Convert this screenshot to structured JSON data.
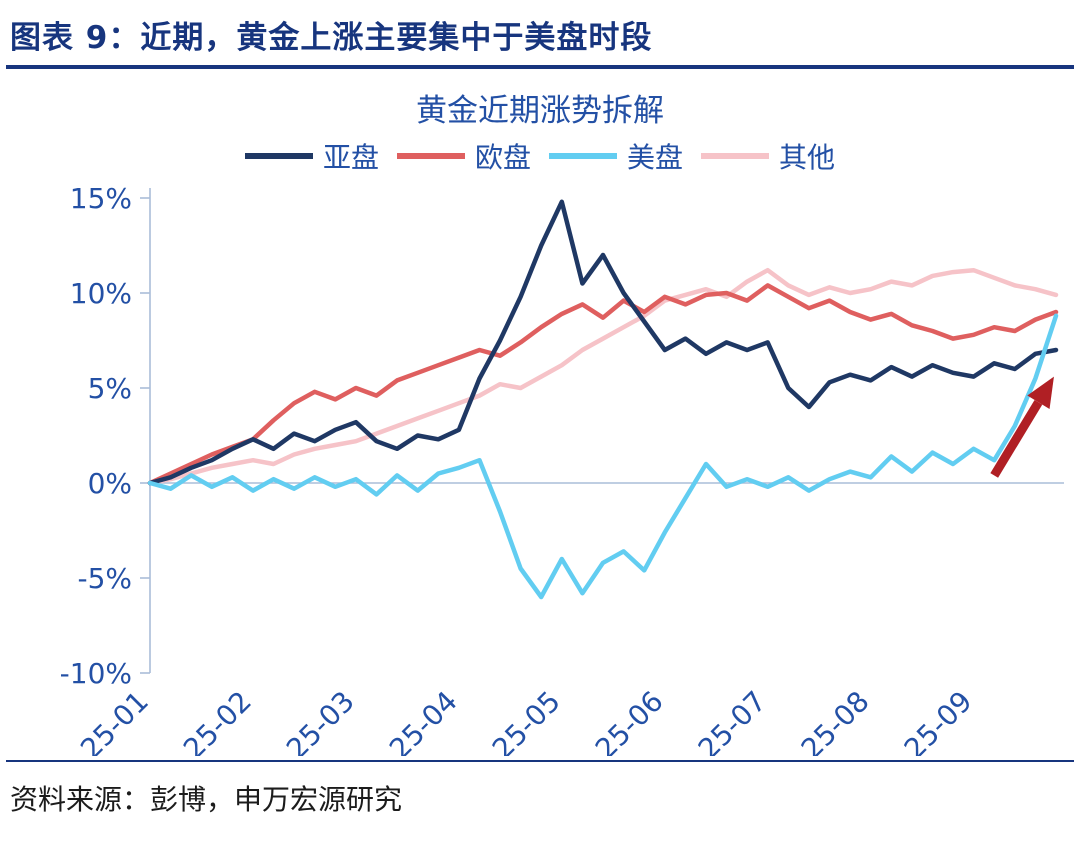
{
  "figure": {
    "title": "图表 9：近期，黄金上涨主要集中于美盘时段",
    "source": "资料来源：彭博，申万宏源研究"
  },
  "chart_data": {
    "type": "line",
    "title": "黄金近期涨势拆解",
    "xlabel": "",
    "ylabel": "",
    "y_unit": "%",
    "ylim": [
      -10,
      15
    ],
    "y_ticks": [
      15,
      10,
      5,
      0,
      -5,
      -10
    ],
    "y_tick_labels": [
      "15%",
      "10%",
      "5%",
      "0%",
      "-5%",
      "-10%"
    ],
    "x_tick_labels": [
      "25-01",
      "25-02",
      "25-03",
      "25-04",
      "25-05",
      "25-06",
      "25-07",
      "25-08",
      "25-09"
    ],
    "x_months_span": [
      0,
      8.8
    ],
    "points_per_month": 5,
    "grid": false,
    "legend_position": "top",
    "axis_color": "#aabdd8",
    "text_color": "#2350a5",
    "series": [
      {
        "key": "asia",
        "name": "亚盘",
        "color": "#1f3864",
        "values": [
          0,
          0.3,
          0.8,
          1.2,
          1.8,
          2.3,
          1.8,
          2.6,
          2.2,
          2.8,
          3.2,
          2.2,
          1.8,
          2.5,
          2.3,
          2.8,
          5.5,
          7.5,
          9.8,
          12.5,
          14.8,
          10.5,
          12.0,
          10.0,
          8.5,
          7.0,
          7.6,
          6.8,
          7.4,
          7.0,
          7.4,
          5.0,
          4.0,
          5.3,
          5.7,
          5.4,
          6.1,
          5.6,
          6.2,
          5.8,
          5.6,
          6.3,
          6.0,
          6.8,
          7.0
        ]
      },
      {
        "key": "europe",
        "name": "欧盘",
        "color": "#df5f5f",
        "values": [
          0,
          0.5,
          1.0,
          1.5,
          1.9,
          2.3,
          3.3,
          4.2,
          4.8,
          4.4,
          5.0,
          4.6,
          5.4,
          5.8,
          6.2,
          6.6,
          7.0,
          6.7,
          7.4,
          8.2,
          8.9,
          9.4,
          8.7,
          9.6,
          9.0,
          9.8,
          9.4,
          9.9,
          10.0,
          9.6,
          10.4,
          9.8,
          9.2,
          9.6,
          9.0,
          8.6,
          8.9,
          8.3,
          8.0,
          7.6,
          7.8,
          8.2,
          8.0,
          8.6,
          9.0
        ]
      },
      {
        "key": "us",
        "name": "美盘",
        "color": "#62cdf1",
        "values": [
          0,
          -0.3,
          0.4,
          -0.2,
          0.3,
          -0.4,
          0.2,
          -0.3,
          0.3,
          -0.2,
          0.2,
          -0.6,
          0.4,
          -0.4,
          0.5,
          0.8,
          1.2,
          -1.5,
          -4.5,
          -6.0,
          -4.0,
          -5.8,
          -4.2,
          -3.6,
          -4.6,
          -2.6,
          -0.8,
          1.0,
          -0.2,
          0.2,
          -0.2,
          0.3,
          -0.4,
          0.2,
          0.6,
          0.3,
          1.4,
          0.6,
          1.6,
          1.0,
          1.8,
          1.2,
          3.0,
          5.5,
          8.8
        ]
      },
      {
        "key": "other",
        "name": "其他",
        "color": "#f6c3c8",
        "values": [
          0,
          0.2,
          0.5,
          0.8,
          1.0,
          1.2,
          1.0,
          1.5,
          1.8,
          2.0,
          2.2,
          2.6,
          3.0,
          3.4,
          3.8,
          4.2,
          4.6,
          5.2,
          5.0,
          5.6,
          6.2,
          7.0,
          7.6,
          8.2,
          8.8,
          9.6,
          9.9,
          10.2,
          9.8,
          10.6,
          11.2,
          10.4,
          9.9,
          10.3,
          10.0,
          10.2,
          10.6,
          10.4,
          10.9,
          11.1,
          11.2,
          10.8,
          10.4,
          10.2,
          9.9
        ]
      }
    ],
    "annotation_arrow": {
      "from": {
        "month": 8.2,
        "value": 0.4
      },
      "to": {
        "month": 8.78,
        "value": 5.6
      },
      "color": "#b01f24"
    }
  }
}
